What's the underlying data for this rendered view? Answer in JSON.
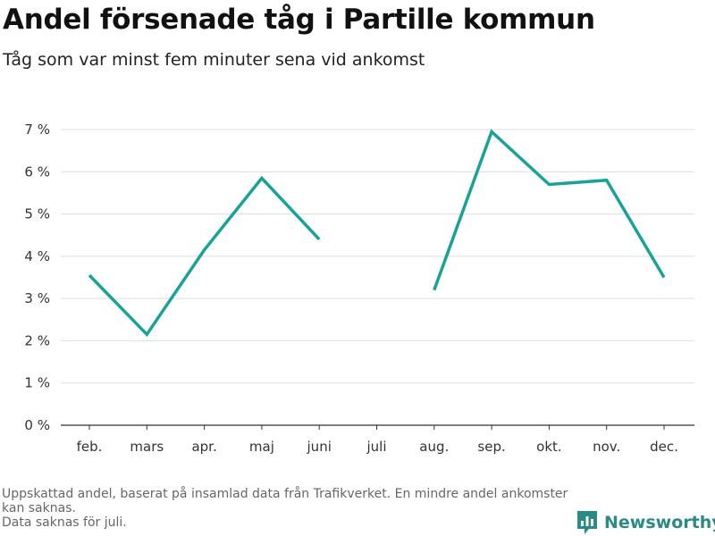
{
  "header": {
    "title": "Andel försenade tåg i Partille kommun",
    "subtitle": "Tåg som var minst fem minuter sena vid ankomst"
  },
  "chart_data": {
    "type": "line",
    "categories": [
      "feb.",
      "mars",
      "apr.",
      "maj",
      "juni",
      "juli",
      "aug.",
      "sep.",
      "okt.",
      "nov.",
      "dec."
    ],
    "series": [
      {
        "values": [
          3.55,
          2.15,
          4.15,
          5.85,
          4.4,
          null,
          3.2,
          6.95,
          5.7,
          5.8,
          3.5
        ]
      }
    ],
    "y_ticks": [
      {
        "value": 0,
        "label": "0 %"
      },
      {
        "value": 1,
        "label": "1 %"
      },
      {
        "value": 2,
        "label": "2 %"
      },
      {
        "value": 3,
        "label": "3 %"
      },
      {
        "value": 4,
        "label": "4 %"
      },
      {
        "value": 5,
        "label": "5 %"
      },
      {
        "value": 6,
        "label": "6 %"
      },
      {
        "value": 7,
        "label": "7 %"
      }
    ],
    "ylim": [
      0,
      7
    ],
    "grid": true,
    "line_color": "#18a398"
  },
  "footer": {
    "note_1": "Uppskattad andel, baserat på insamlad data från Trafikverket. En mindre andel ankomster kan saknas.",
    "note_2": "Data saknas för juli.",
    "brand": "Newsworthy",
    "brand_color": "#2a8a86"
  }
}
